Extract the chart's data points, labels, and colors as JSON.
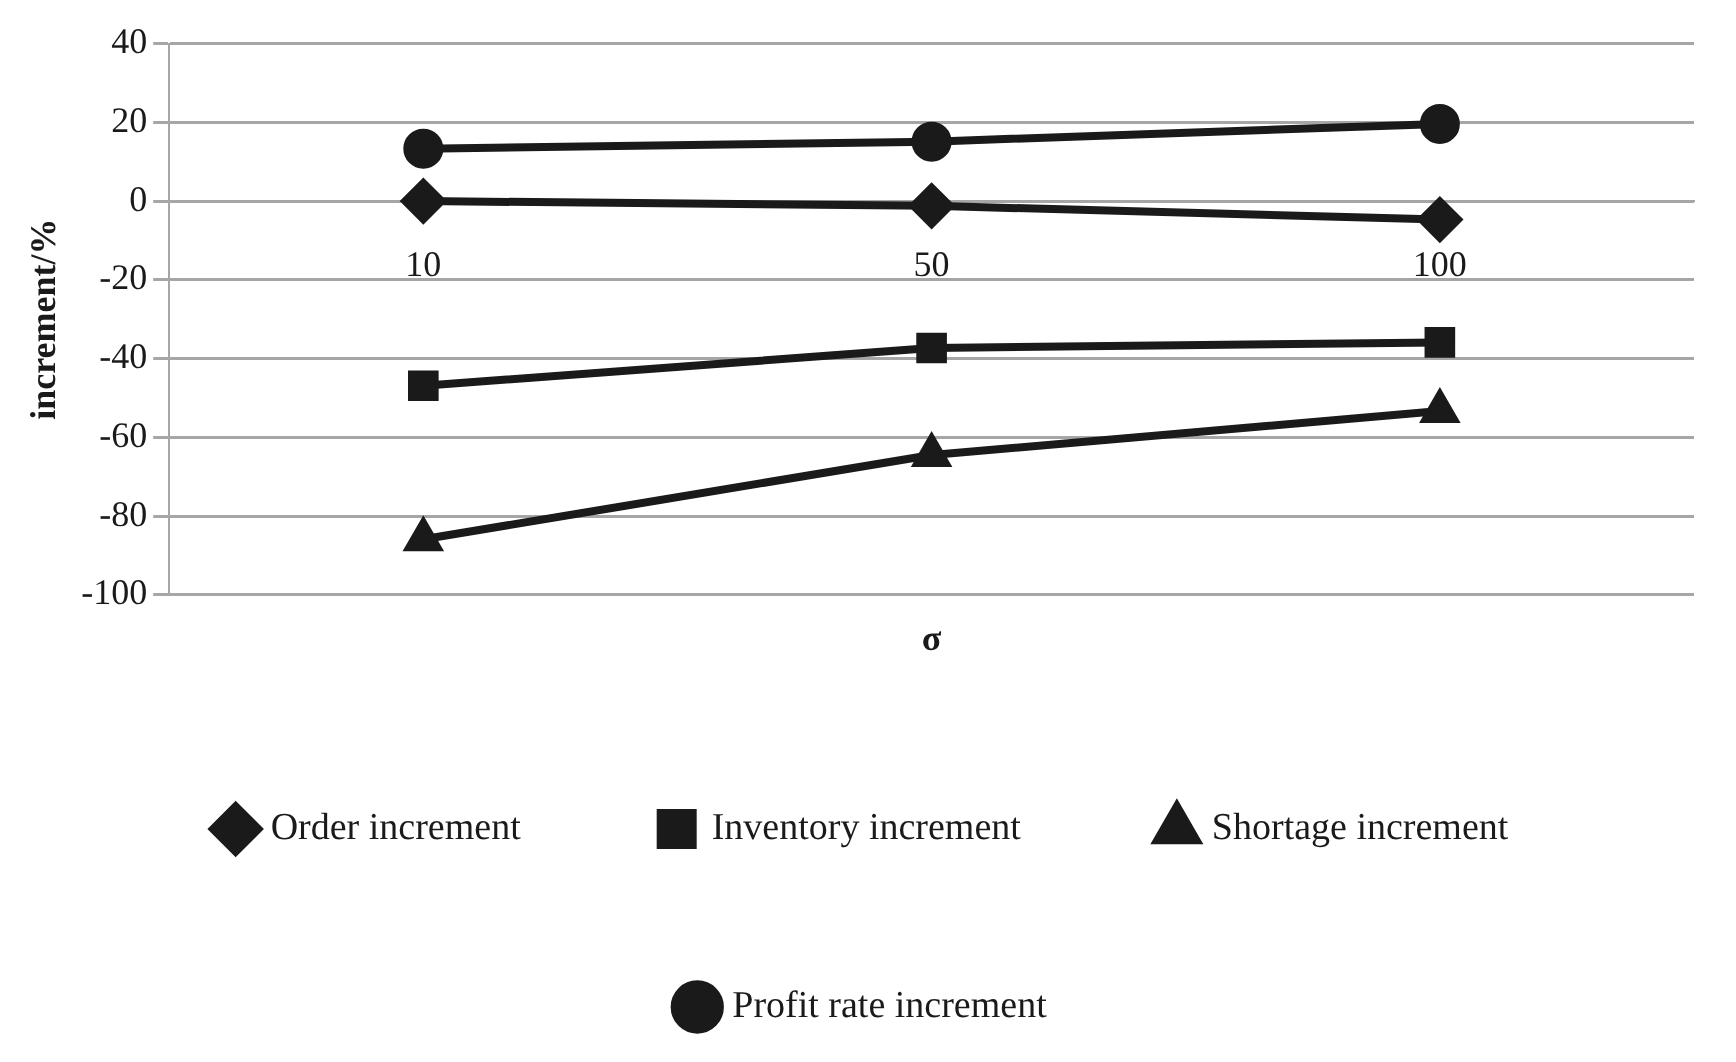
{
  "chart_data": {
    "type": "line",
    "xlabel": "σ",
    "ylabel": "increment/%",
    "categories": [
      "10",
      "50",
      "100"
    ],
    "ylim": [
      -100,
      40
    ],
    "yticks": [
      -100,
      -80,
      -60,
      -40,
      -20,
      0,
      20,
      40
    ],
    "grid": "y",
    "legend": "bottom",
    "line_style": "solid",
    "series": [
      {
        "name": "Order increment",
        "color": "#1a1a1a",
        "marker": "diamond",
        "values": [
          0,
          -1.2,
          -4.7
        ]
      },
      {
        "name": "Inventory increment",
        "color": "#1a1a1a",
        "marker": "square",
        "values": [
          -46.9,
          -37.3,
          -35.9
        ]
      },
      {
        "name": "Shortage increment",
        "color": "#1a1a1a",
        "marker": "triangle",
        "values": [
          -85.9,
          -64.5,
          -53.3
        ]
      },
      {
        "name": "Profit rate increment",
        "color": "#1a1a1a",
        "marker": "circle",
        "values": [
          13.3,
          15.1,
          19.6
        ]
      }
    ]
  }
}
